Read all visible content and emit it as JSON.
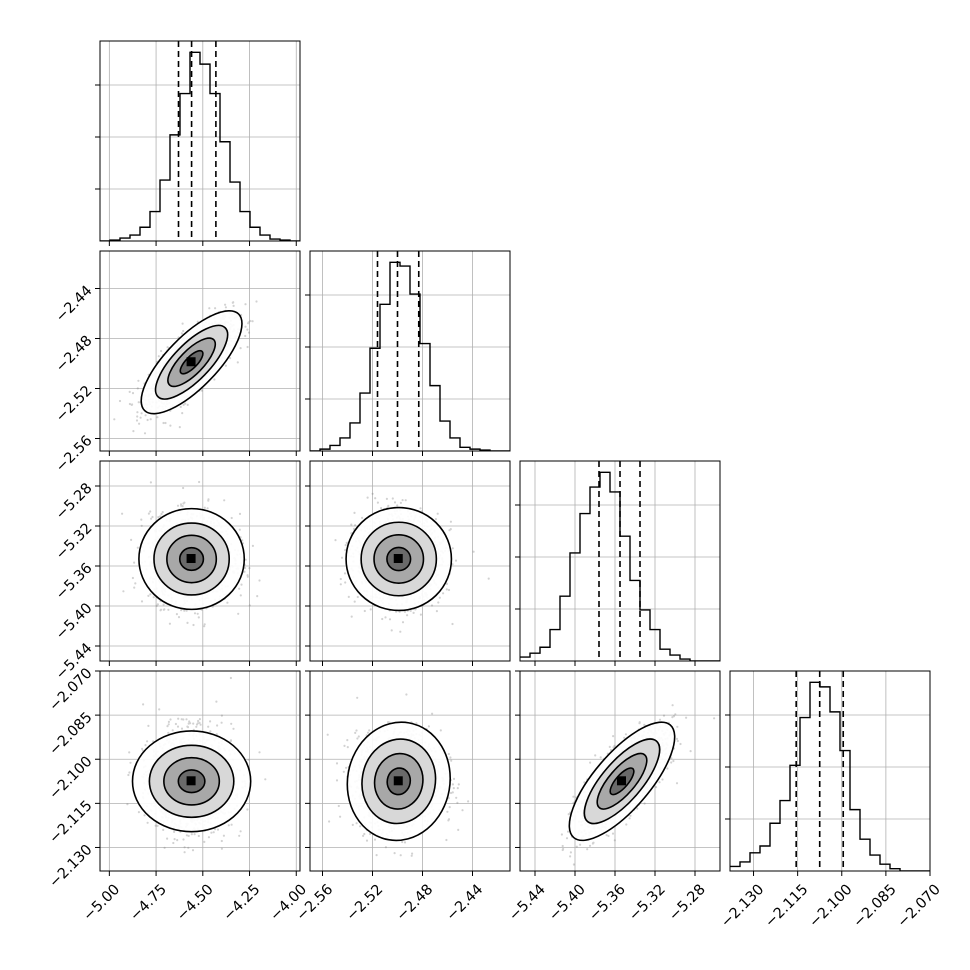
{
  "chart_data": {
    "type": "corner",
    "grid": true,
    "parameters": [
      {
        "range": [
          -5.05,
          -3.98
        ],
        "ticks": [
          "−5.00",
          "−4.75",
          "−4.50",
          "−4.25",
          "−4.00"
        ],
        "tick_values": [
          -5.0,
          -4.75,
          -4.5,
          -4.25,
          -4.0
        ],
        "quantiles": [
          -4.63,
          -4.56,
          -4.43
        ],
        "hist": {
          "edges_start": -5.05,
          "bin_width": 0.0535,
          "counts": [
            0,
            1,
            3,
            6,
            14,
            30,
            62,
            108,
            150,
            192,
            180,
            150,
            101,
            60,
            30,
            14,
            6,
            2,
            1,
            0
          ]
        }
      },
      {
        "range": [
          -2.57,
          -2.41
        ],
        "ticks": [
          "−2.56",
          "−2.52",
          "−2.48",
          "−2.44"
        ],
        "tick_values": [
          -2.56,
          -2.52,
          -2.48,
          -2.44
        ],
        "quantiles": [
          -2.516,
          -2.5,
          -2.483
        ],
        "hist": {
          "edges_start": -2.57,
          "bin_width": 0.008,
          "counts": [
            0,
            2,
            6,
            14,
            30,
            62,
            110,
            157,
            202,
            198,
            168,
            115,
            70,
            32,
            14,
            4,
            2,
            1,
            0,
            0
          ]
        }
      },
      {
        "range": [
          -5.455,
          -5.255
        ],
        "ticks": [
          "−5.44",
          "−5.40",
          "−5.36",
          "−5.32",
          "−5.28"
        ],
        "tick_values": [
          -5.44,
          -5.4,
          -5.36,
          -5.32,
          -5.28
        ],
        "quantiles": [
          -5.376,
          -5.355,
          -5.335
        ],
        "hist": {
          "edges_start": -5.455,
          "bin_width": 0.01,
          "counts": [
            4,
            8,
            14,
            32,
            66,
            110,
            150,
            177,
            192,
            172,
            127,
            82,
            52,
            32,
            12,
            6,
            2,
            0,
            0,
            0
          ]
        }
      },
      {
        "range": [
          -2.138,
          -2.07
        ],
        "ticks": [
          "−2.130",
          "−2.115",
          "−2.100",
          "−2.085",
          "−2.070"
        ],
        "tick_values": [
          -2.13,
          -2.115,
          -2.1,
          -2.085,
          -2.07
        ],
        "quantiles": [
          -2.1155,
          -2.1075,
          -2.0995
        ],
        "hist": {
          "edges_start": -2.138,
          "bin_width": 0.0034,
          "counts": [
            4,
            8,
            16,
            22,
            42,
            62,
            93,
            135,
            166,
            162,
            140,
            106,
            54,
            28,
            14,
            6,
            2,
            0,
            0,
            0
          ]
        }
      }
    ],
    "pairs": [
      {
        "x": 0,
        "y": 1,
        "mean": [
          -4.56,
          -2.499
        ],
        "sd": [
          0.11,
          0.0168
        ],
        "rho": 0.75
      },
      {
        "x": 0,
        "y": 2,
        "mean": [
          -4.56,
          -5.353
        ],
        "sd": [
          0.11,
          0.0215
        ],
        "rho": 0.0
      },
      {
        "x": 1,
        "y": 2,
        "mean": [
          -2.499,
          -5.353
        ],
        "sd": [
          0.0168,
          0.0215
        ],
        "rho": 0.0
      },
      {
        "x": 0,
        "y": 3,
        "mean": [
          -4.56,
          -2.1075
        ],
        "sd": [
          0.11,
          0.0082
        ],
        "rho": 0.0
      },
      {
        "x": 1,
        "y": 3,
        "mean": [
          -2.499,
          -2.1075
        ],
        "sd": [
          0.0168,
          0.0082
        ],
        "rho": 0.05
      },
      {
        "x": 2,
        "y": 3,
        "mean": [
          -5.353,
          -2.1075
        ],
        "sd": [
          0.0215,
          0.0082
        ],
        "rho": 0.75
      }
    ]
  },
  "colors": {
    "line": "#000000",
    "grid": "#b0b0b0",
    "scatter": "#7f7f7f",
    "density_dark": "#000000"
  }
}
